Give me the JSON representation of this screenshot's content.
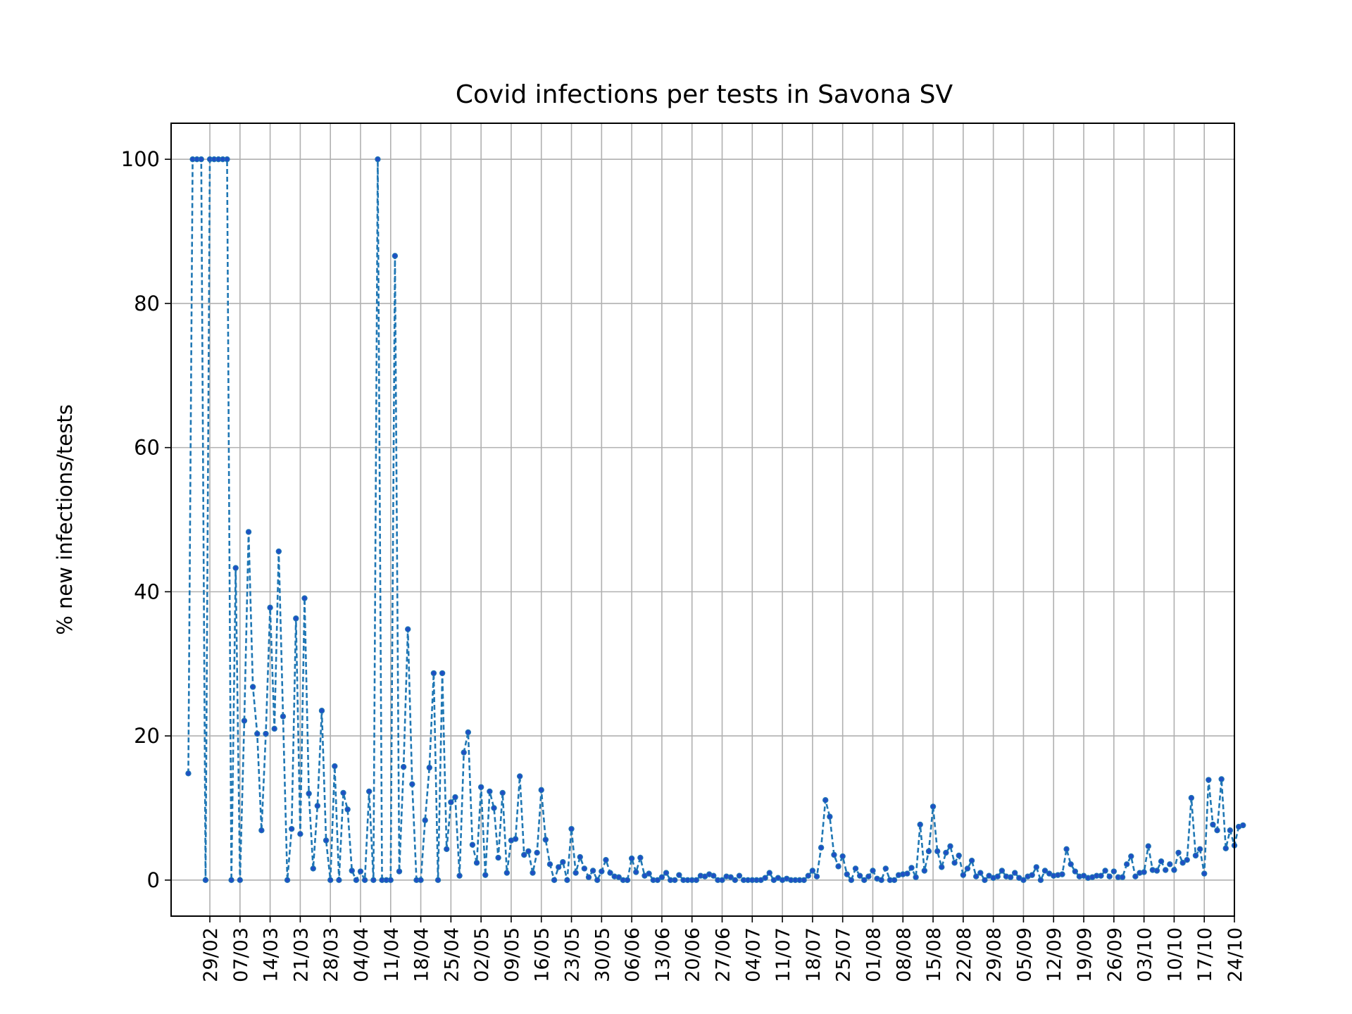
{
  "chart_data": {
    "type": "line",
    "title": "Covid infections per tests in Savona SV",
    "xlabel": "",
    "ylabel": "% new infections/tests",
    "x_start": "24/02",
    "ylim": [
      -5,
      105
    ],
    "xlim": [
      -4.0,
      243.0
    ],
    "yticks": [
      0,
      20,
      40,
      60,
      80,
      100
    ],
    "xtick_labels": [
      "29/02",
      "07/03",
      "14/03",
      "21/03",
      "28/03",
      "04/04",
      "11/04",
      "18/04",
      "25/04",
      "02/05",
      "09/05",
      "16/05",
      "23/05",
      "30/05",
      "06/06",
      "13/06",
      "20/06",
      "27/06",
      "04/07",
      "11/07",
      "18/07",
      "25/07",
      "01/08",
      "08/08",
      "15/08",
      "22/08",
      "29/08",
      "05/09",
      "12/09",
      "19/09",
      "26/09",
      "03/10",
      "10/10",
      "17/10",
      "24/10"
    ],
    "grid": true,
    "legend": "none",
    "line_color": "#1f77b4",
    "marker_color": "#1f4fc4",
    "line_style": "dashed",
    "series": [
      {
        "values": [
          14.8,
          100,
          100,
          100,
          0,
          100,
          100,
          100,
          100,
          100,
          0,
          43.3,
          0,
          22.1,
          48.3,
          26.8,
          20.3,
          6.9,
          20.3,
          37.8,
          21.0,
          45.6,
          22.7,
          0,
          7.1,
          36.3,
          6.4,
          39.1,
          12.0,
          1.6,
          10.3,
          23.5,
          5.5,
          0,
          15.8,
          0,
          12.1,
          9.8,
          1.3,
          0,
          1.2,
          0,
          12.3,
          0,
          100,
          0,
          0,
          0,
          86.6,
          1.2,
          15.7,
          34.8,
          13.3,
          0,
          0,
          8.3,
          15.6,
          28.7,
          0,
          28.7,
          4.3,
          10.8,
          11.5,
          0.6,
          17.7,
          20.5,
          4.9,
          2.4,
          12.9,
          0.7,
          12.3,
          10.0,
          3.1,
          12.1,
          1.0,
          5.5,
          5.7,
          14.4,
          3.5,
          4.0,
          1.0,
          3.8,
          12.5,
          5.6,
          2.2,
          0,
          1.8,
          2.5,
          0,
          7.1,
          1.0,
          3.2,
          1.6,
          0.4,
          1.3,
          0,
          1.2,
          2.8,
          1.0,
          0.5,
          0.4,
          0,
          0,
          3.0,
          1.1,
          3.1,
          0.6,
          0.9,
          0,
          0,
          0.4,
          1.0,
          0,
          0,
          0.7,
          0,
          0,
          0,
          0,
          0.6,
          0.5,
          0.8,
          0.6,
          0,
          0,
          0.5,
          0.4,
          0,
          0.6,
          0,
          0,
          0,
          0,
          0,
          0.3,
          1.0,
          0,
          0.3,
          0,
          0.2,
          0,
          0,
          0,
          0,
          0.6,
          1.3,
          0.5,
          4.5,
          11.1,
          8.8,
          3.5,
          1.9,
          3.3,
          0.8,
          0,
          1.6,
          0.6,
          0,
          0.5,
          1.3,
          0.2,
          0,
          1.6,
          0,
          0,
          0.7,
          0.8,
          0.9,
          1.7,
          0.4,
          7.7,
          1.3,
          4.0,
          10.2,
          4.0,
          1.8,
          3.8,
          4.7,
          2.4,
          3.4,
          0.7,
          1.6,
          2.7,
          0.5,
          1.0,
          0,
          0.6,
          0.3,
          0.5,
          1.3,
          0.5,
          0.4,
          1.0,
          0.3,
          0,
          0.5,
          0.7,
          1.8,
          0,
          1.3,
          0.9,
          0.6,
          0.7,
          0.8,
          4.3,
          2.2,
          1.2,
          0.5,
          0.6,
          0.3,
          0.4,
          0.6,
          0.6,
          1.3,
          0.5,
          1.2,
          0.4,
          0.4,
          2.2,
          3.3,
          0.5,
          1.0,
          1.1,
          4.7,
          1.4,
          1.3,
          2.6,
          1.4,
          2.2,
          1.4,
          3.8,
          2.4,
          2.8,
          11.4,
          3.4,
          4.3,
          0.9,
          13.9,
          7.7,
          6.9,
          14.0,
          4.4,
          6.9,
          4.8,
          7.4,
          7.6
        ]
      }
    ]
  }
}
